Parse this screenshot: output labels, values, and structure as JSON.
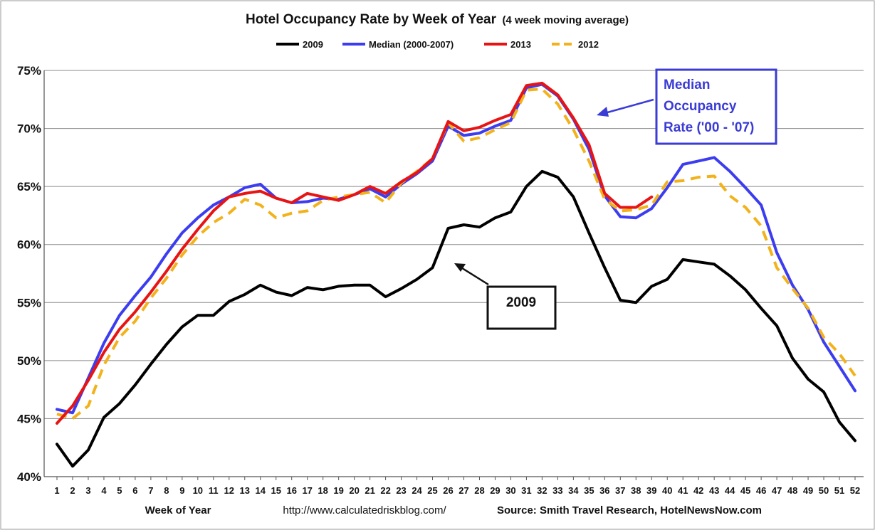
{
  "chart_data": {
    "type": "line",
    "title": "Hotel Occupancy Rate by  Week of Year",
    "subtitle": "(4 week moving average)",
    "xlabel": "Week of Year",
    "ylabel": "",
    "ylim": [
      40,
      75
    ],
    "xlim": [
      1,
      52
    ],
    "y_ticks": [
      "40%",
      "45%",
      "50%",
      "55%",
      "60%",
      "65%",
      "70%",
      "75%"
    ],
    "x_ticks": [
      "1",
      "2",
      "3",
      "4",
      "5",
      "6",
      "7",
      "8",
      "9",
      "10",
      "11",
      "12",
      "13",
      "14",
      "15",
      "16",
      "17",
      "18",
      "19",
      "20",
      "21",
      "22",
      "23",
      "24",
      "25",
      "26",
      "27",
      "28",
      "29",
      "30",
      "31",
      "32",
      "33",
      "34",
      "35",
      "36",
      "37",
      "38",
      "39",
      "40",
      "41",
      "42",
      "43",
      "44",
      "45",
      "46",
      "47",
      "48",
      "49",
      "50",
      "51",
      "52"
    ],
    "grid": true,
    "legend": "top",
    "series": [
      {
        "name": "2009",
        "color": "#000000",
        "dash": "solid",
        "values": [
          42.8,
          40.9,
          42.3,
          45.1,
          46.3,
          47.9,
          49.7,
          51.4,
          52.9,
          53.9,
          53.9,
          55.1,
          55.7,
          56.5,
          55.9,
          55.6,
          56.3,
          56.1,
          56.4,
          56.5,
          56.5,
          55.5,
          56.2,
          57.0,
          58.0,
          61.4,
          61.7,
          61.5,
          62.3,
          62.8,
          65.0,
          66.3,
          65.8,
          64.1,
          61.0,
          58.0,
          55.2,
          55.0,
          56.4,
          57.0,
          58.7,
          58.5,
          58.3,
          57.3,
          56.1,
          54.5,
          53.0,
          50.2,
          48.4,
          47.3,
          44.7,
          43.1
        ]
      },
      {
        "name": "Median (2000-2007)",
        "color": "#3c3cf0",
        "dash": "solid",
        "values": [
          45.8,
          45.5,
          48.5,
          51.5,
          53.9,
          55.6,
          57.2,
          59.2,
          61.0,
          62.3,
          63.4,
          64.1,
          64.9,
          65.2,
          64.0,
          63.6,
          63.7,
          64.0,
          63.9,
          64.3,
          64.8,
          64.1,
          65.2,
          66.1,
          67.2,
          70.2,
          69.4,
          69.6,
          70.2,
          70.7,
          73.5,
          73.8,
          72.8,
          70.8,
          68.2,
          64.2,
          62.4,
          62.3,
          63.1,
          64.9,
          66.9,
          67.2,
          67.5,
          66.3,
          64.9,
          63.4,
          59.3,
          56.5,
          54.4,
          51.6,
          49.5,
          47.4
        ]
      },
      {
        "name": "2013",
        "color": "#e81414",
        "dash": "solid",
        "values": [
          44.6,
          46.1,
          48.3,
          50.7,
          52.7,
          54.2,
          55.9,
          57.7,
          59.6,
          61.3,
          62.9,
          64.1,
          64.4,
          64.6,
          64.0,
          63.6,
          64.4,
          64.1,
          63.8,
          64.3,
          65.0,
          64.4,
          65.4,
          66.2,
          67.4,
          70.6,
          69.8,
          70.1,
          70.7,
          71.2,
          73.7,
          73.9,
          72.9,
          70.9,
          68.6,
          64.4,
          63.2,
          63.2,
          64.1
        ]
      },
      {
        "name": "2012",
        "color": "#f2b21c",
        "dash": "dashed",
        "values": [
          45.4,
          45.0,
          46.1,
          49.6,
          52.0,
          53.4,
          55.4,
          57.1,
          59.1,
          60.7,
          61.9,
          62.7,
          63.9,
          63.4,
          62.3,
          62.7,
          62.9,
          63.8,
          64.1,
          64.3,
          64.5,
          63.6,
          65.3,
          66.3,
          67.4,
          70.5,
          68.9,
          69.2,
          69.9,
          70.5,
          73.3,
          73.4,
          72.1,
          69.9,
          67.2,
          63.9,
          62.9,
          63.0,
          63.4,
          65.4,
          65.5,
          65.8,
          65.9,
          64.2,
          63.2,
          61.6,
          58.0,
          56.2,
          54.5,
          52.0,
          50.6,
          48.7
        ]
      }
    ],
    "annotations": [
      {
        "lines": [
          "Median",
          "Occupancy",
          "Rate ('00 - '07)"
        ]
      },
      {
        "text": "2009"
      }
    ]
  },
  "footer": {
    "url": "http://www.calculatedriskblog.com/",
    "source": "Source: Smith Travel Research, HotelNewsNow.com"
  }
}
